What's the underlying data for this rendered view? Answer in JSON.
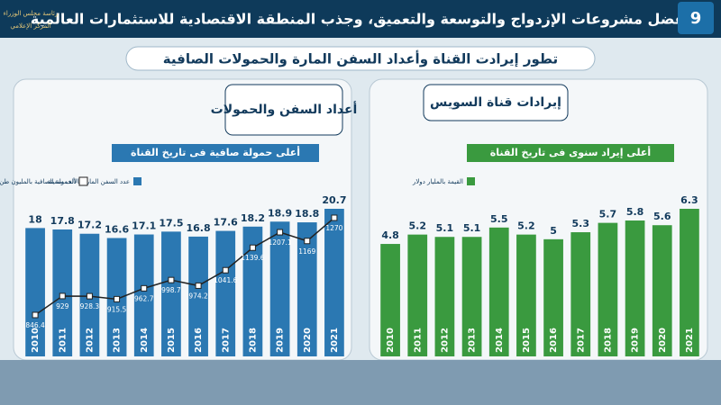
{
  "header": {
    "title": "بفضل مشروعات الإزدواج والتوسعة والتعميق، وجذب المنطقة الاقتصادية للاستثمارات العالمية",
    "subtitle": "تطور إيرادت القناة وأعداد السفن المارة والحمولات الصافية",
    "page": "9",
    "logo_top": "رئاسة مجلس الوزراء",
    "logo_bottom": "المركز الإعلامي"
  },
  "chart_data": [
    {
      "type": "bar",
      "title": "أعداد السفن والحمولات",
      "annotation": "أعلى حمولة صافية فى تاريخ القناة",
      "categories": [
        "2010",
        "2011",
        "2012",
        "2013",
        "2014",
        "2015",
        "2016",
        "2017",
        "2018",
        "2019",
        "2020",
        "2021"
      ],
      "series": [
        {
          "name": "عدد السفن المارة بالألف سفينة",
          "color": "#2b78b2",
          "values": [
            18,
            17.8,
            17.2,
            16.6,
            17.1,
            17.5,
            16.8,
            17.6,
            18.2,
            18.9,
            18.8,
            20.7
          ]
        },
        {
          "name": "الحمولة الصافية بالمليون طن",
          "color": "#222222",
          "type": "line",
          "axis": "y2",
          "values": [
            846.4,
            929,
            928.3,
            915.5,
            962.7,
            998.7,
            974.2,
            1041.6,
            1139.6,
            1207.1,
            1169,
            1270
          ]
        }
      ]
    },
    {
      "type": "bar",
      "title": "إيرادات قناة السويس",
      "annotation": "أعلى إيراد سنوى فى تاريخ القناة",
      "categories": [
        "2010",
        "2011",
        "2012",
        "2013",
        "2014",
        "2015",
        "2016",
        "2017",
        "2018",
        "2019",
        "2020",
        "2021"
      ],
      "series": [
        {
          "name": "القيمة بالمليار دولار",
          "color": "#3a9a3f",
          "values": [
            4.8,
            5.2,
            5.1,
            5.1,
            5.5,
            5.2,
            5,
            5.3,
            5.7,
            5.8,
            5.6,
            6.3
          ]
        }
      ]
    }
  ]
}
